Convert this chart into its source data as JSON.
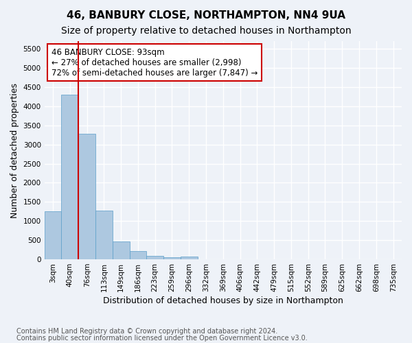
{
  "title": "46, BANBURY CLOSE, NORTHAMPTON, NN4 9UA",
  "subtitle": "Size of property relative to detached houses in Northampton",
  "xlabel": "Distribution of detached houses by size in Northampton",
  "ylabel": "Number of detached properties",
  "footnote1": "Contains HM Land Registry data © Crown copyright and database right 2024.",
  "footnote2": "Contains public sector information licensed under the Open Government Licence v3.0.",
  "bin_labels": [
    "3sqm",
    "40sqm",
    "76sqm",
    "113sqm",
    "149sqm",
    "186sqm",
    "223sqm",
    "259sqm",
    "296sqm",
    "332sqm",
    "369sqm",
    "406sqm",
    "442sqm",
    "479sqm",
    "515sqm",
    "552sqm",
    "589sqm",
    "625sqm",
    "662sqm",
    "698sqm",
    "735sqm"
  ],
  "bar_values": [
    1250,
    4300,
    3280,
    1270,
    470,
    210,
    90,
    55,
    70,
    0,
    0,
    0,
    0,
    0,
    0,
    0,
    0,
    0,
    0,
    0,
    0
  ],
  "ylim": [
    0,
    5700
  ],
  "yticks": [
    0,
    500,
    1000,
    1500,
    2000,
    2500,
    3000,
    3500,
    4000,
    4500,
    5000,
    5500
  ],
  "bar_color": "#adc8e0",
  "bar_edge_color": "#5a9ec9",
  "vline_position": 1.5,
  "vline_color": "#cc0000",
  "annotation_text": "46 BANBURY CLOSE: 93sqm\n← 27% of detached houses are smaller (2,998)\n72% of semi-detached houses are larger (7,847) →",
  "annotation_box_color": "#ffffff",
  "annotation_box_edge": "#cc0000",
  "background_color": "#eef2f8",
  "plot_bg_color": "#eef2f8",
  "grid_color": "#ffffff",
  "title_fontsize": 11,
  "subtitle_fontsize": 10,
  "label_fontsize": 9,
  "tick_fontsize": 7.5,
  "annot_fontsize": 8.5,
  "footnote_fontsize": 7
}
